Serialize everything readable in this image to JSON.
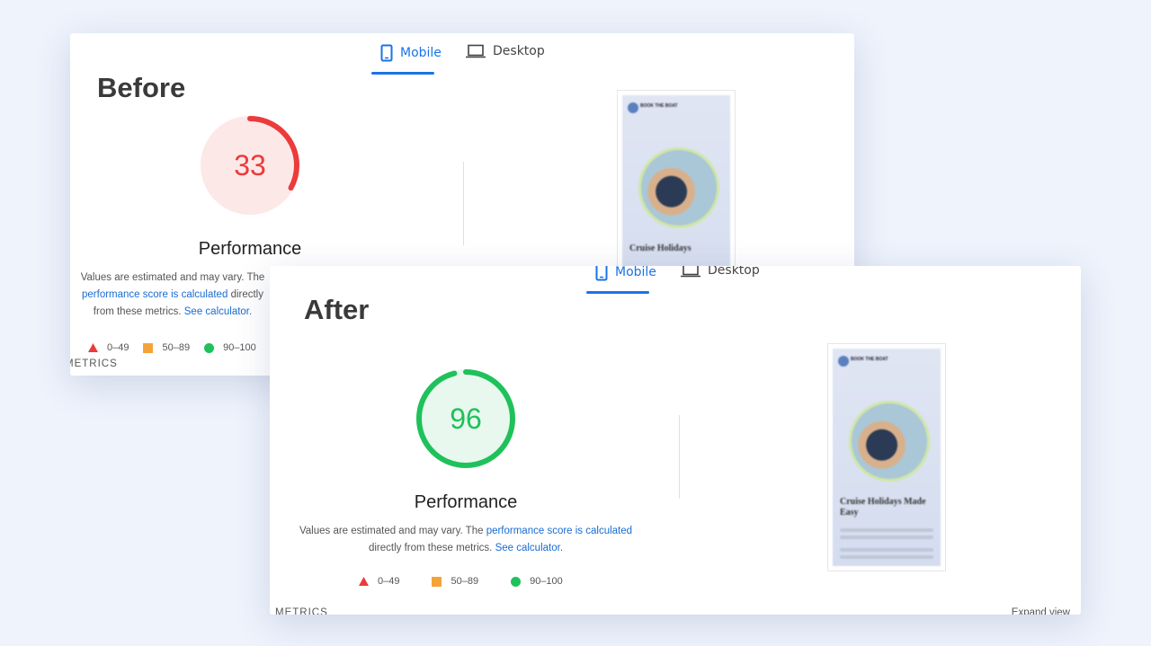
{
  "before": {
    "heading": "Before",
    "tabs": [
      {
        "label": "Mobile",
        "icon": "phone-icon",
        "active": true
      },
      {
        "label": "Desktop",
        "icon": "laptop-icon",
        "active": false
      }
    ],
    "score": 33,
    "score_color": "#eb3b3b",
    "score_bg": "#fde8e8",
    "category": "Performance",
    "desc_prefix": "Values are estimated and may vary. The ",
    "desc_link": "performance score is calculated",
    "desc_mid": "directly from these metrics. ",
    "desc_link2": "See calculator.",
    "legend": [
      {
        "label": "0–49",
        "icon": "triangle-icon",
        "color": "#eb3b3b"
      },
      {
        "label": "50–89",
        "icon": "square-icon",
        "color": "#f4a33a"
      },
      {
        "label": "90–100",
        "icon": "circle-icon",
        "color": "#1fc15b"
      }
    ],
    "metrics_label": "METRICS",
    "thumb": {
      "brand": "BOOK THE BOAT",
      "title": "Cruise Holidays"
    }
  },
  "after": {
    "heading": "After",
    "tabs": [
      {
        "label": "Mobile",
        "icon": "phone-icon",
        "active": true
      },
      {
        "label": "Desktop",
        "icon": "laptop-icon",
        "active": false
      }
    ],
    "score": 96,
    "score_color": "#1fc15b",
    "score_bg": "#e8f8ee",
    "category": "Performance",
    "desc_prefix": "Values are estimated and may vary. The ",
    "desc_link": "performance score is calculated",
    "desc_mid": "directly from these metrics. ",
    "desc_link2": "See calculator.",
    "legend": [
      {
        "label": "0–49",
        "icon": "triangle-icon",
        "color": "#eb3b3b"
      },
      {
        "label": "50–89",
        "icon": "square-icon",
        "color": "#f4a33a"
      },
      {
        "label": "90–100",
        "icon": "circle-icon",
        "color": "#1fc15b"
      }
    ],
    "metrics_label": "METRICS",
    "expand_label": "Expand view",
    "thumb": {
      "brand": "BOOK THE BOAT",
      "title": "Cruise Holidays Made Easy"
    }
  }
}
